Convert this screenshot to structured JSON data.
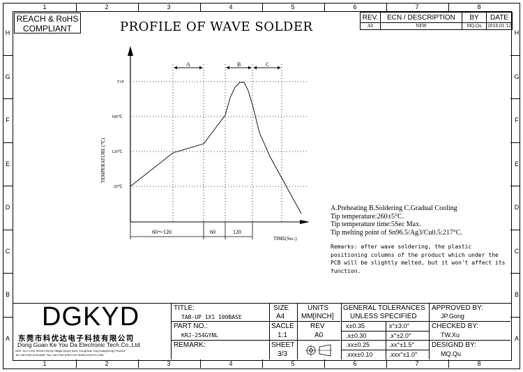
{
  "zones": {
    "columns": [
      "1",
      "2",
      "3",
      "4",
      "5",
      "6",
      "7",
      "8"
    ],
    "rows": [
      "H",
      "G",
      "F",
      "E",
      "D",
      "C",
      "B",
      "A"
    ]
  },
  "compliance": {
    "line1": "REACH & RoHS",
    "line2": "COMPLIANT"
  },
  "title": "PROFILE OF WAVE SOLDER",
  "revision_table": {
    "headers": {
      "rev": "REV.",
      "ecn": "ECN / DESCRIPTION",
      "by": "BY",
      "date": "DATE"
    },
    "row": {
      "rev": "A0",
      "ecn": "NEW",
      "by": "MQ.Qu",
      "date": "2018.01.12"
    }
  },
  "chart_data": {
    "type": "line",
    "ylabel": "TEMPERATURE (℃)",
    "xlabel": "TIME(Sec.)",
    "y_ticks": [
      "20℃",
      "120℃",
      "180℃",
      "T1P"
    ],
    "zones": [
      "A",
      "B",
      "C"
    ],
    "intervals": [
      "60～120",
      "60",
      "120"
    ]
  },
  "notes": {
    "legend": "A.Preheating  B.Soldering  C.Gradual Cooling",
    "tip_temp": "Tip temperature:260±5°C.",
    "tip_time": "Tip temperature time:5Sec Max.",
    "tip_melt": "Tip melting point of Sn96.5/Ag3/Cu0.5:217°C.",
    "remarks": "Remarks: after wave soldering, the plastic positioning columns of the product  which under the PCB will be slightly melted, but it won't affect its function."
  },
  "title_block": {
    "logo": "DGKYD",
    "company_cn": "东莞市科优达电子科技有限公司",
    "company_en": "Dong Guan Ke You Da Electronic Tech.Co.,Ltd",
    "address": "ADD: No.1 LiHe Street,LiHeng Village,Qingxi town, DongGuan City,GuangDong Province",
    "contact": "Tel:+86-0769-87334606; Fax:+86-0769-87847129  WWW.DGKYD.COM",
    "title_label": "TITLE:",
    "title_value": "TAB-UP 1X1 100BASE",
    "partno_label": "PART NO.:",
    "partno_value": "KRJ-254GYNL",
    "remark_label": "REMARK:",
    "size_label": "SIZE",
    "size_value": "A4",
    "units_label": "UNITS",
    "units_value": "MM[INCH]",
    "scale_label": "SACLE",
    "scale_value": "1:1",
    "rev_label": "REV",
    "rev_value": "A0",
    "sheet_label": "SHEET",
    "sheet_value": "3/3",
    "tol_title1": "GENERAL TOLERANCES",
    "tol_title2": "UNLESS SPECIFIED",
    "tol": [
      "x±0.35",
      "x°±3.0°",
      ".x±0.30",
      ".x°±2.0°",
      ".xx±0.25",
      ".xx°±1.5°",
      ".xxx±0.10",
      ".xxx°±1.0°"
    ],
    "approved_label": "APPROVED BY:",
    "approved_value": "JP.Gong",
    "checked_label": "CHECKED BY:",
    "checked_value": "TW.Xu",
    "designed_label": "DESIGND BY:",
    "designed_value": "MQ.Qu"
  }
}
